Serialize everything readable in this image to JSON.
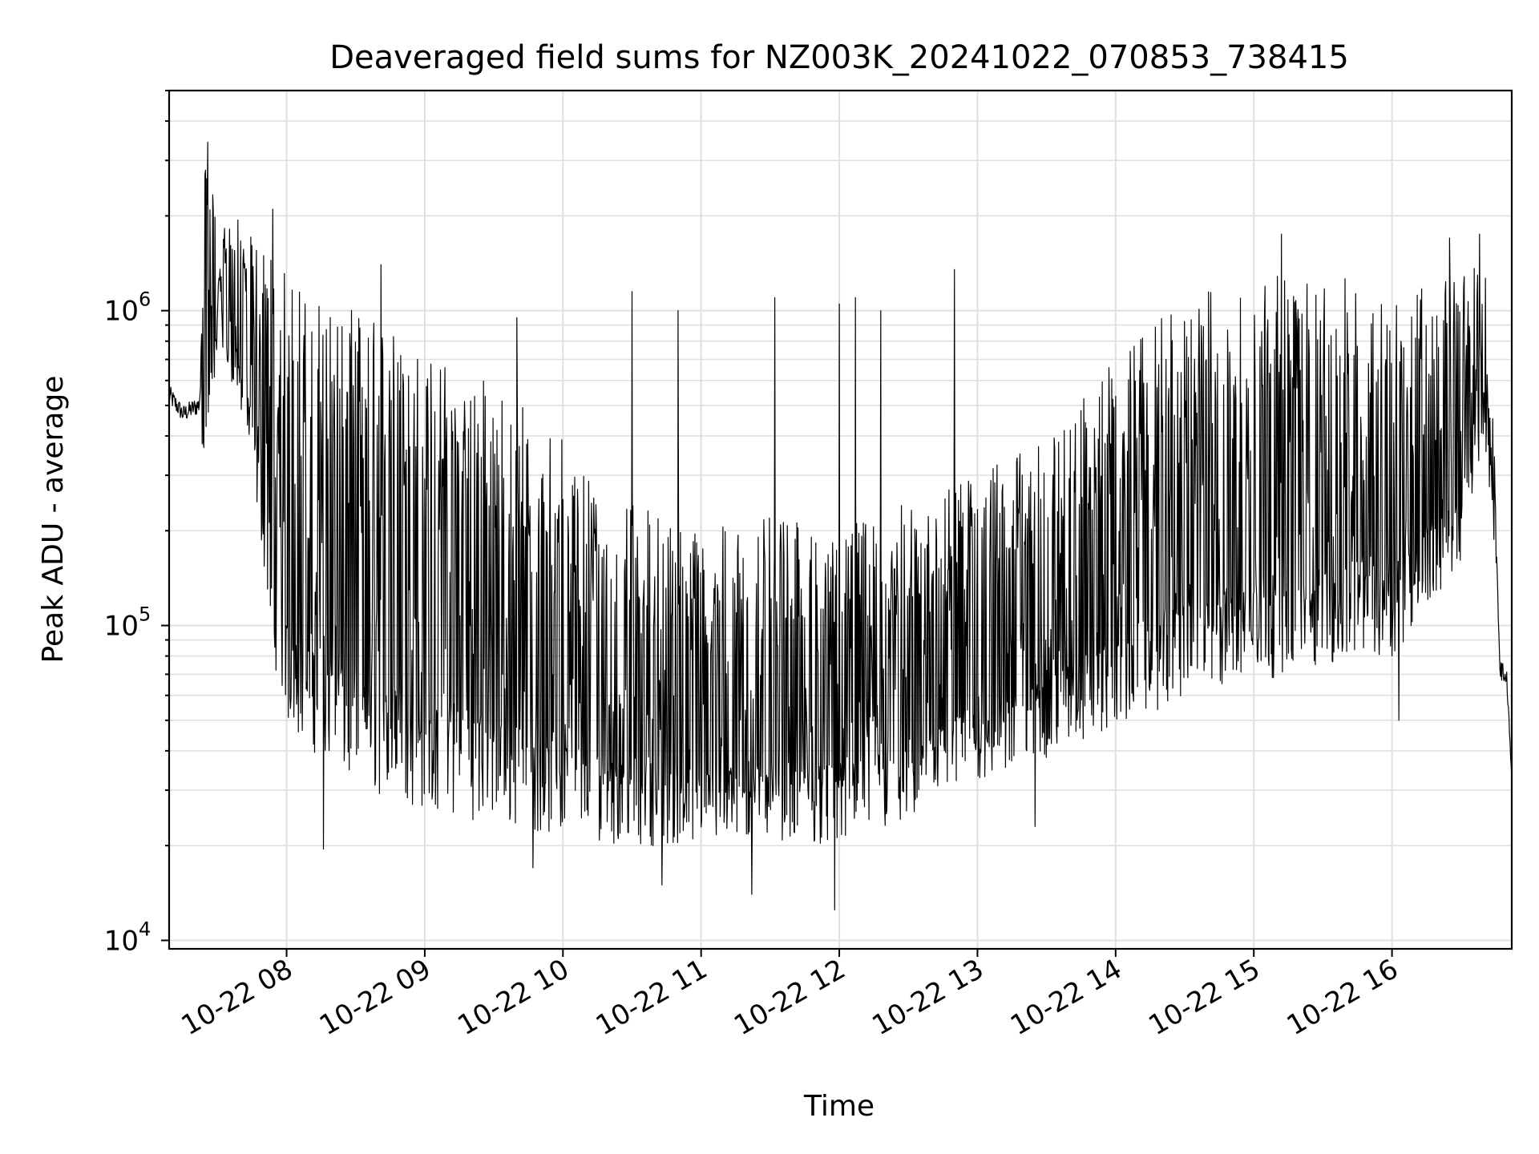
{
  "chart_data": {
    "type": "line",
    "title": "Deaveraged field sums for NZ003K_20241022_070853_738415",
    "xlabel": "Time",
    "ylabel": "Peak ADU - average",
    "xscale": "time",
    "yscale": "log",
    "xlim": [
      "2024-10-22 07:09",
      "2024-10-22 16:52"
    ],
    "ylim": [
      9400,
      5000000
    ],
    "grid": true,
    "x_ticks": [
      {
        "value": "2024-10-22 08:00",
        "label": "10-22 08"
      },
      {
        "value": "2024-10-22 09:00",
        "label": "10-22 09"
      },
      {
        "value": "2024-10-22 10:00",
        "label": "10-22 10"
      },
      {
        "value": "2024-10-22 11:00",
        "label": "10-22 11"
      },
      {
        "value": "2024-10-22 12:00",
        "label": "10-22 12"
      },
      {
        "value": "2024-10-22 13:00",
        "label": "10-22 13"
      },
      {
        "value": "2024-10-22 14:00",
        "label": "10-22 14"
      },
      {
        "value": "2024-10-22 15:00",
        "label": "10-22 15"
      },
      {
        "value": "2024-10-22 16:00",
        "label": "10-22 16"
      }
    ],
    "y_ticks": [
      {
        "value": 10000,
        "base": "10",
        "exp": "4"
      },
      {
        "value": 100000,
        "base": "10",
        "exp": "5"
      },
      {
        "value": 1000000,
        "base": "10",
        "exp": "6"
      }
    ],
    "series": [
      {
        "color": "#000000",
        "envelope": [
          {
            "x": "2024-10-22 07:09",
            "low": 450000,
            "high": 650000
          },
          {
            "x": "2024-10-22 07:15",
            "low": 400000,
            "high": 550000
          },
          {
            "x": "2024-10-22 07:22",
            "low": 420000,
            "high": 600000
          },
          {
            "x": "2024-10-22 07:25",
            "low": 280000,
            "high": 4000000
          },
          {
            "x": "2024-10-22 07:30",
            "low": 700000,
            "high": 1800000
          },
          {
            "x": "2024-10-22 07:38",
            "low": 550000,
            "high": 2000000
          },
          {
            "x": "2024-10-22 07:45",
            "low": 300000,
            "high": 1700000
          },
          {
            "x": "2024-10-22 07:50",
            "low": 150000,
            "high": 1600000
          },
          {
            "x": "2024-10-22 07:55",
            "low": 70000,
            "high": 1500000
          },
          {
            "x": "2024-10-22 08:00",
            "low": 45000,
            "high": 1300000
          },
          {
            "x": "2024-10-22 08:15",
            "low": 35000,
            "high": 1100000
          },
          {
            "x": "2024-10-22 08:30",
            "low": 28000,
            "high": 1000000
          },
          {
            "x": "2024-10-22 08:45",
            "low": 26000,
            "high": 900000
          },
          {
            "x": "2024-10-22 09:00",
            "low": 24000,
            "high": 750000
          },
          {
            "x": "2024-10-22 09:30",
            "low": 22000,
            "high": 600000
          },
          {
            "x": "2024-10-22 10:00",
            "low": 20000,
            "high": 400000
          },
          {
            "x": "2024-10-22 10:30",
            "low": 19000,
            "high": 250000
          },
          {
            "x": "2024-10-22 11:00",
            "low": 19000,
            "high": 200000
          },
          {
            "x": "2024-10-22 11:30",
            "low": 20000,
            "high": 220000
          },
          {
            "x": "2024-10-22 12:00",
            "low": 19000,
            "high": 200000
          },
          {
            "x": "2024-10-22 12:30",
            "low": 22000,
            "high": 250000
          },
          {
            "x": "2024-10-22 13:00",
            "low": 30000,
            "high": 300000
          },
          {
            "x": "2024-10-22 13:30",
            "low": 36000,
            "high": 400000
          },
          {
            "x": "2024-10-22 14:00",
            "low": 45000,
            "high": 700000
          },
          {
            "x": "2024-10-22 14:30",
            "low": 55000,
            "high": 1100000
          },
          {
            "x": "2024-10-22 15:00",
            "low": 62000,
            "high": 1300000
          },
          {
            "x": "2024-10-22 15:30",
            "low": 70000,
            "high": 1300000
          },
          {
            "x": "2024-10-22 16:00",
            "low": 75000,
            "high": 1200000
          },
          {
            "x": "2024-10-22 16:30",
            "low": 150000,
            "high": 1300000
          },
          {
            "x": "2024-10-22 16:40",
            "low": 400000,
            "high": 1500000
          },
          {
            "x": "2024-10-22 16:44",
            "low": 200000,
            "high": 600000
          },
          {
            "x": "2024-10-22 16:46",
            "low": 80000,
            "high": 200000
          },
          {
            "x": "2024-10-22 16:47",
            "low": 60000,
            "high": 90000
          },
          {
            "x": "2024-10-22 16:50",
            "low": 55000,
            "high": 80000
          },
          {
            "x": "2024-10-22 16:52",
            "low": 25000,
            "high": 40000
          }
        ],
        "spikes_high": [
          {
            "x": "2024-10-22 07:54",
            "y": 2100000
          },
          {
            "x": "2024-10-22 08:41",
            "y": 1400000
          },
          {
            "x": "2024-10-22 09:40",
            "y": 950000
          },
          {
            "x": "2024-10-22 10:30",
            "y": 1150000
          },
          {
            "x": "2024-10-22 10:50",
            "y": 1000000
          },
          {
            "x": "2024-10-22 11:32",
            "y": 1100000
          },
          {
            "x": "2024-10-22 12:00",
            "y": 1050000
          },
          {
            "x": "2024-10-22 12:07",
            "y": 1100000
          },
          {
            "x": "2024-10-22 12:18",
            "y": 1000000
          },
          {
            "x": "2024-10-22 12:50",
            "y": 1350000
          },
          {
            "x": "2024-10-22 15:12",
            "y": 1750000
          },
          {
            "x": "2024-10-22 16:25",
            "y": 1700000
          },
          {
            "x": "2024-10-22 16:38",
            "y": 1750000
          }
        ],
        "spikes_low": [
          {
            "x": "2024-10-22 08:16",
            "y": 19500
          },
          {
            "x": "2024-10-22 09:47",
            "y": 17000
          },
          {
            "x": "2024-10-22 10:43",
            "y": 15000
          },
          {
            "x": "2024-10-22 11:22",
            "y": 14000
          },
          {
            "x": "2024-10-22 11:58",
            "y": 12500
          },
          {
            "x": "2024-10-22 13:25",
            "y": 23000
          },
          {
            "x": "2024-10-22 16:03",
            "y": 50000
          }
        ]
      }
    ]
  }
}
